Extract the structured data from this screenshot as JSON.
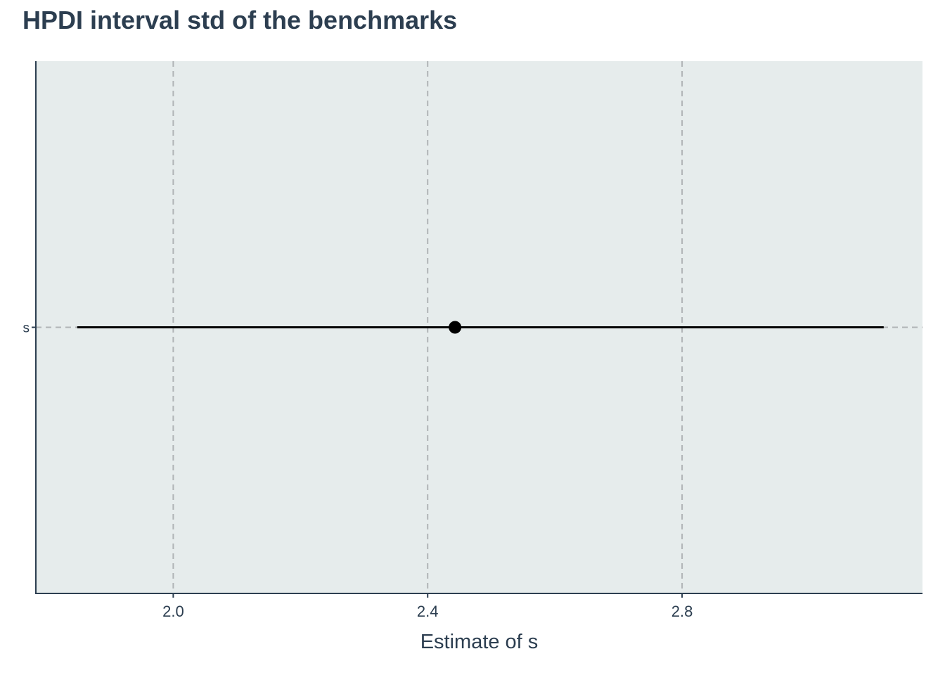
{
  "chart_data": {
    "type": "interval",
    "title": "HPDI interval std of the benchmarks",
    "xlabel": "Estimate of s",
    "ylabel": "",
    "xlim": [
      1.784,
      3.178
    ],
    "x_ticks": [
      2.0,
      2.4,
      2.8
    ],
    "x_tick_labels": [
      "2.0",
      "2.4",
      "2.8"
    ],
    "categories": [
      "s"
    ],
    "points": [
      {
        "label": "s",
        "estimate": 2.443,
        "lower": 1.849,
        "upper": 3.117
      }
    ],
    "grid": true,
    "grid_style": "dashed",
    "colors": {
      "panel_background": "#e6ecec",
      "grid": "#b0b4b6",
      "axis": "#2c3e50",
      "text": "#2c3e50",
      "interval": "#000000",
      "point": "#000000"
    }
  }
}
